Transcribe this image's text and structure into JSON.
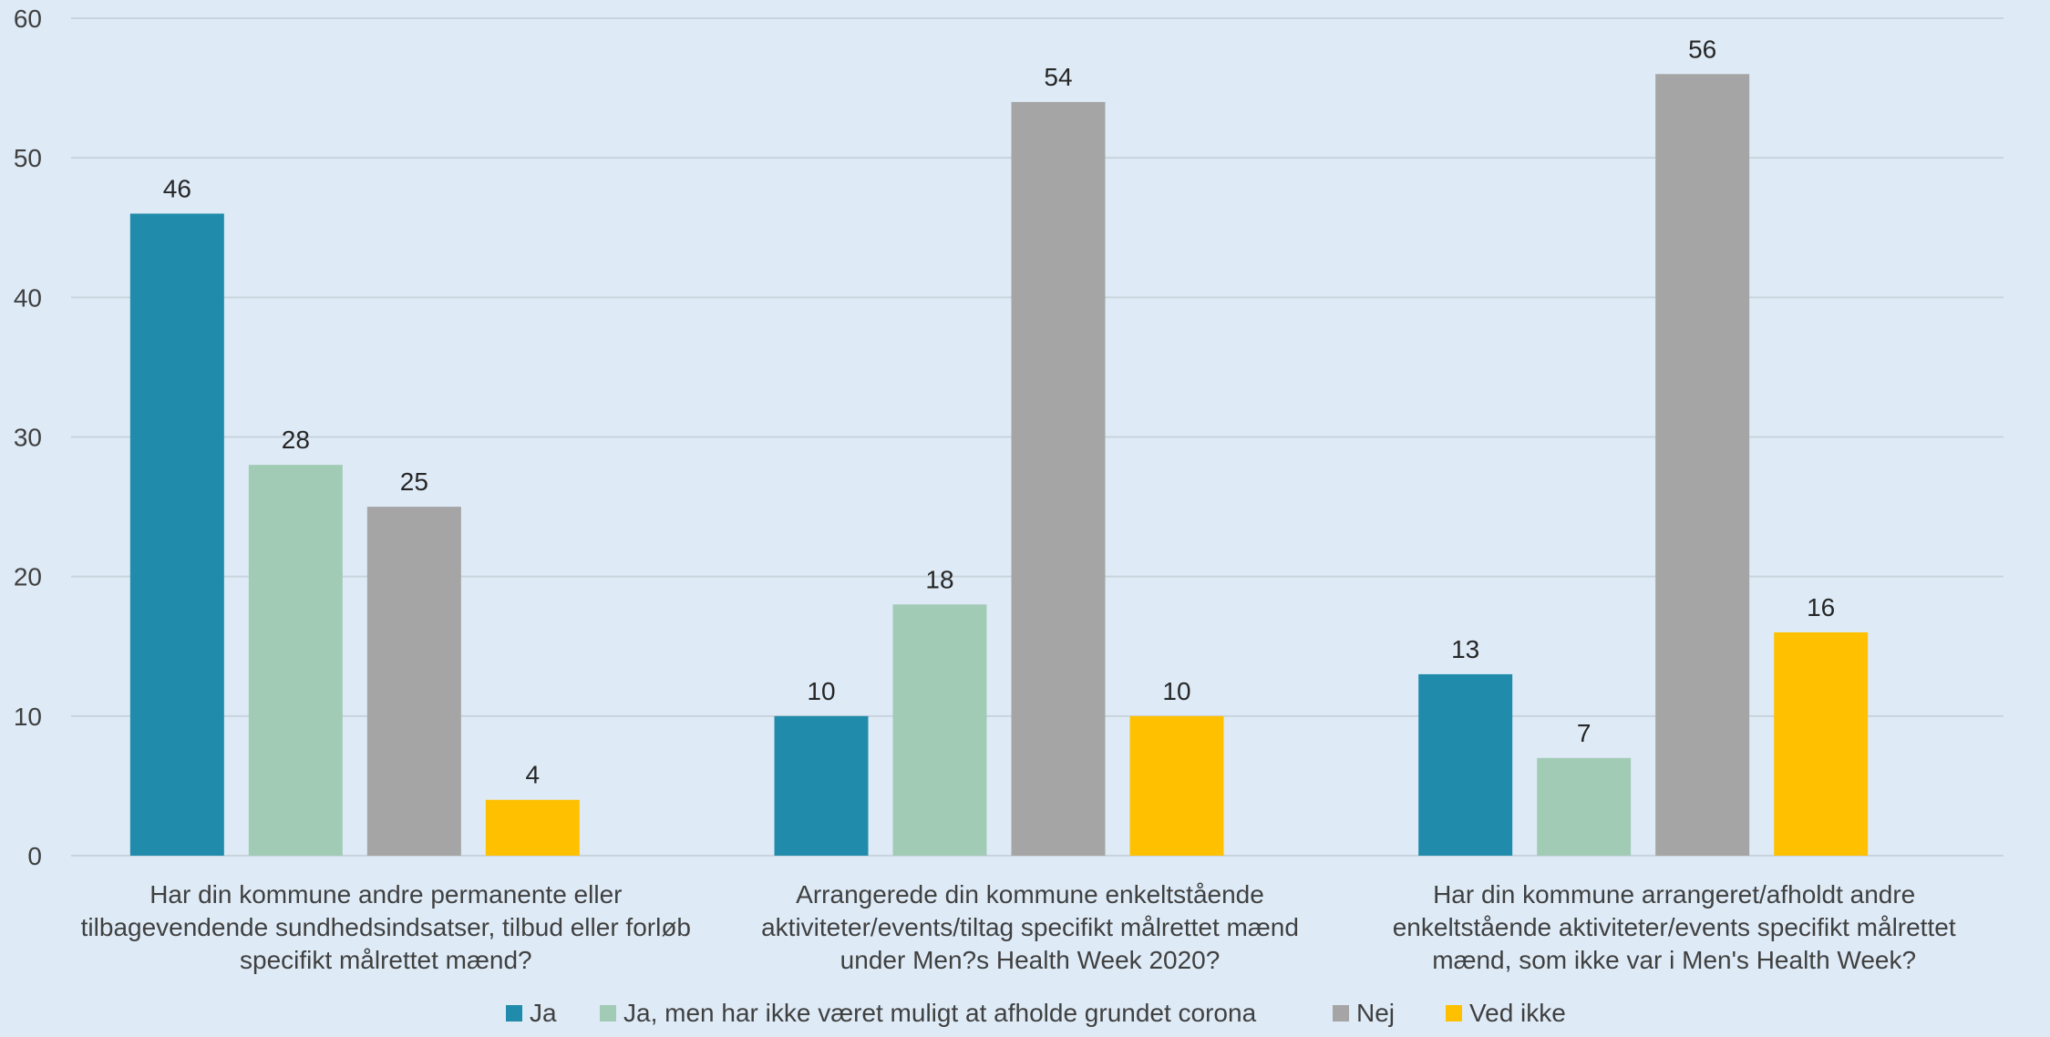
{
  "chart_data": {
    "type": "bar",
    "title": "",
    "xlabel": "",
    "ylabel": "",
    "ylim": [
      0,
      60
    ],
    "yticks": [
      0,
      10,
      20,
      30,
      40,
      50,
      60
    ],
    "grid": true,
    "legend_position": "bottom",
    "categories": [
      [
        "Har din kommune andre permanente eller",
        "tilbagevendende sundhedsindsatser, tilbud eller forløb",
        "specifikt målrettet mænd?"
      ],
      [
        "Arrangerede din kommune enkeltstående",
        "aktiviteter/events/tiltag specifikt målrettet mænd",
        "under Men?s Health Week 2020?"
      ],
      [
        "Har din kommune arrangeret/afholdt andre",
        "enkeltstående aktiviteter/events specifikt målrettet",
        "mænd, som ikke var i Men's Health Week?"
      ]
    ],
    "series": [
      {
        "name": "Ja",
        "color": "#218bab",
        "values": [
          46,
          10,
          13
        ]
      },
      {
        "name": "Ja, men har ikke været muligt at afholde grundet corona",
        "color": "#a2cbb6",
        "values": [
          28,
          18,
          7
        ]
      },
      {
        "name": "Nej",
        "color": "#a5a5a5",
        "values": [
          25,
          54,
          56
        ]
      },
      {
        "name": "Ved ikke",
        "color": "#ffc000",
        "values": [
          4,
          10,
          16
        ]
      }
    ]
  }
}
